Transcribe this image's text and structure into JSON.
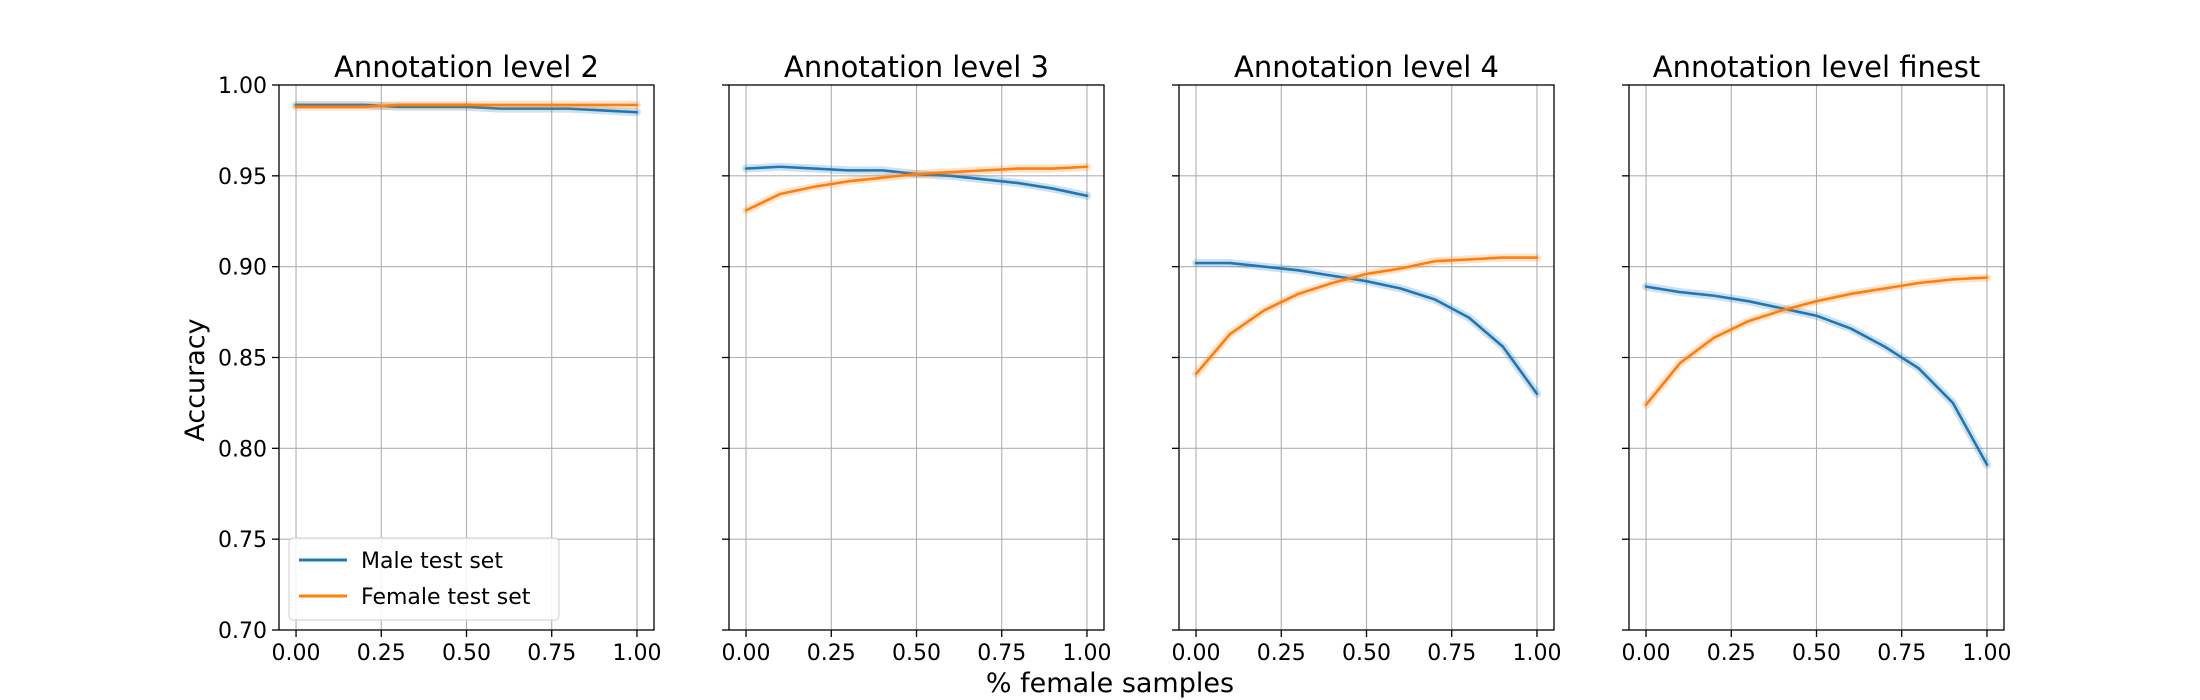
{
  "figure": {
    "xlabel": "% female samples",
    "ylabel": "Accuracy"
  },
  "colors": {
    "male": "#1f77b4",
    "female": "#ff7f0e"
  },
  "legend": {
    "placement": "lower-left",
    "entries": [
      "Male test set",
      "Female test set"
    ]
  },
  "chart_data": [
    {
      "type": "line",
      "title": "Annotation level 2",
      "x": [
        0.0,
        0.1,
        0.2,
        0.3,
        0.4,
        0.5,
        0.6,
        0.7,
        0.8,
        0.9,
        1.0
      ],
      "xlim": [
        -0.05,
        1.05
      ],
      "ylim": [
        0.7,
        1.0
      ],
      "xticks": [
        "0.00",
        "0.25",
        "0.50",
        "0.75",
        "1.00"
      ],
      "yticks": [
        "0.70",
        "0.75",
        "0.80",
        "0.85",
        "0.90",
        "0.95",
        "1.00"
      ],
      "grid": true,
      "series": [
        {
          "name": "Male test set",
          "values": [
            0.989,
            0.989,
            0.989,
            0.988,
            0.988,
            0.988,
            0.987,
            0.987,
            0.987,
            0.986,
            0.985
          ]
        },
        {
          "name": "Female test set",
          "values": [
            0.988,
            0.988,
            0.988,
            0.989,
            0.989,
            0.989,
            0.989,
            0.989,
            0.989,
            0.989,
            0.989
          ]
        }
      ]
    },
    {
      "type": "line",
      "title": "Annotation level 3",
      "x": [
        0.0,
        0.1,
        0.2,
        0.3,
        0.4,
        0.5,
        0.6,
        0.7,
        0.8,
        0.9,
        1.0
      ],
      "xlim": [
        -0.05,
        1.05
      ],
      "ylim": [
        0.7,
        1.0
      ],
      "xticks": [
        "0.00",
        "0.25",
        "0.50",
        "0.75",
        "1.00"
      ],
      "yticks": [
        "0.70",
        "0.75",
        "0.80",
        "0.85",
        "0.90",
        "0.95",
        "1.00"
      ],
      "grid": true,
      "series": [
        {
          "name": "Male test set",
          "values": [
            0.954,
            0.955,
            0.954,
            0.953,
            0.953,
            0.951,
            0.95,
            0.948,
            0.946,
            0.943,
            0.939
          ]
        },
        {
          "name": "Female test set",
          "values": [
            0.931,
            0.94,
            0.944,
            0.947,
            0.949,
            0.951,
            0.952,
            0.953,
            0.954,
            0.954,
            0.955
          ]
        }
      ]
    },
    {
      "type": "line",
      "title": "Annotation level 4",
      "x": [
        0.0,
        0.1,
        0.2,
        0.3,
        0.4,
        0.5,
        0.6,
        0.7,
        0.8,
        0.9,
        1.0
      ],
      "xlim": [
        -0.05,
        1.05
      ],
      "ylim": [
        0.7,
        1.0
      ],
      "xticks": [
        "0.00",
        "0.25",
        "0.50",
        "0.75",
        "1.00"
      ],
      "yticks": [
        "0.70",
        "0.75",
        "0.80",
        "0.85",
        "0.90",
        "0.95",
        "1.00"
      ],
      "grid": true,
      "series": [
        {
          "name": "Male test set",
          "values": [
            0.902,
            0.902,
            0.9,
            0.898,
            0.895,
            0.892,
            0.888,
            0.882,
            0.872,
            0.856,
            0.83
          ]
        },
        {
          "name": "Female test set",
          "values": [
            0.841,
            0.863,
            0.876,
            0.885,
            0.891,
            0.896,
            0.899,
            0.903,
            0.904,
            0.905,
            0.905
          ]
        }
      ]
    },
    {
      "type": "line",
      "title": "Annotation level finest",
      "x": [
        0.0,
        0.1,
        0.2,
        0.3,
        0.4,
        0.5,
        0.6,
        0.7,
        0.8,
        0.9,
        1.0
      ],
      "xlim": [
        -0.05,
        1.05
      ],
      "ylim": [
        0.7,
        1.0
      ],
      "xticks": [
        "0.00",
        "0.25",
        "0.50",
        "0.75",
        "1.00"
      ],
      "yticks": [
        "0.70",
        "0.75",
        "0.80",
        "0.85",
        "0.90",
        "0.95",
        "1.00"
      ],
      "grid": true,
      "series": [
        {
          "name": "Male test set",
          "values": [
            0.889,
            0.886,
            0.884,
            0.881,
            0.877,
            0.873,
            0.866,
            0.856,
            0.844,
            0.825,
            0.791
          ]
        },
        {
          "name": "Female test set",
          "values": [
            0.824,
            0.847,
            0.861,
            0.87,
            0.876,
            0.881,
            0.885,
            0.888,
            0.891,
            0.893,
            0.894
          ]
        }
      ]
    }
  ]
}
